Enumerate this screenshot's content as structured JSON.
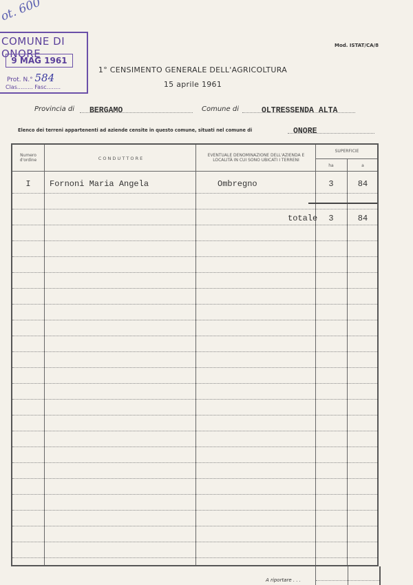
{
  "annotation_handwritten": "ot. 600",
  "stamp": {
    "title": "COMUNE DI ONORE",
    "date": "9 MAG 1961",
    "prot_label": "Prot. N.°",
    "prot_number": "584",
    "clas_fasc": "Clas......... Fasc........"
  },
  "model_code": "Mod. ISTAT/CA/8",
  "title": "1° CENSIMENTO GENERALE DELL'AGRICOLTURA",
  "date": "15 aprile 1961",
  "provincia_label": "Provincia di",
  "provincia": "BERGAMO",
  "comune_label": "Comune di",
  "comune": "OLTRESSENDA ALTA",
  "elenco_label": "Elenco dei terreni appartenenti ad aziende censite in questo comune, situati nel comune di",
  "elenco_comune": "ONORE",
  "table": {
    "headers": {
      "numero": "Numero d'ordine",
      "conduttore": "C O N D U T T O R E",
      "denominazione": "EVENTUALE DENOMINAZIONE DELL'AZIENDA E LOCALITÀ IN CUI SONO UBICATI I TERRENI",
      "superficie": "SUPERFICIE",
      "ha": "ha",
      "a": "a"
    },
    "rows": [
      {
        "numero": "I",
        "conduttore": "Fornoni Maria Angela",
        "localita": "Ombregno",
        "ha": "3",
        "a": "84"
      }
    ],
    "total": {
      "label": "totale",
      "ha": "3",
      "a": "84"
    },
    "riportare_label": "A riportare . . ."
  }
}
